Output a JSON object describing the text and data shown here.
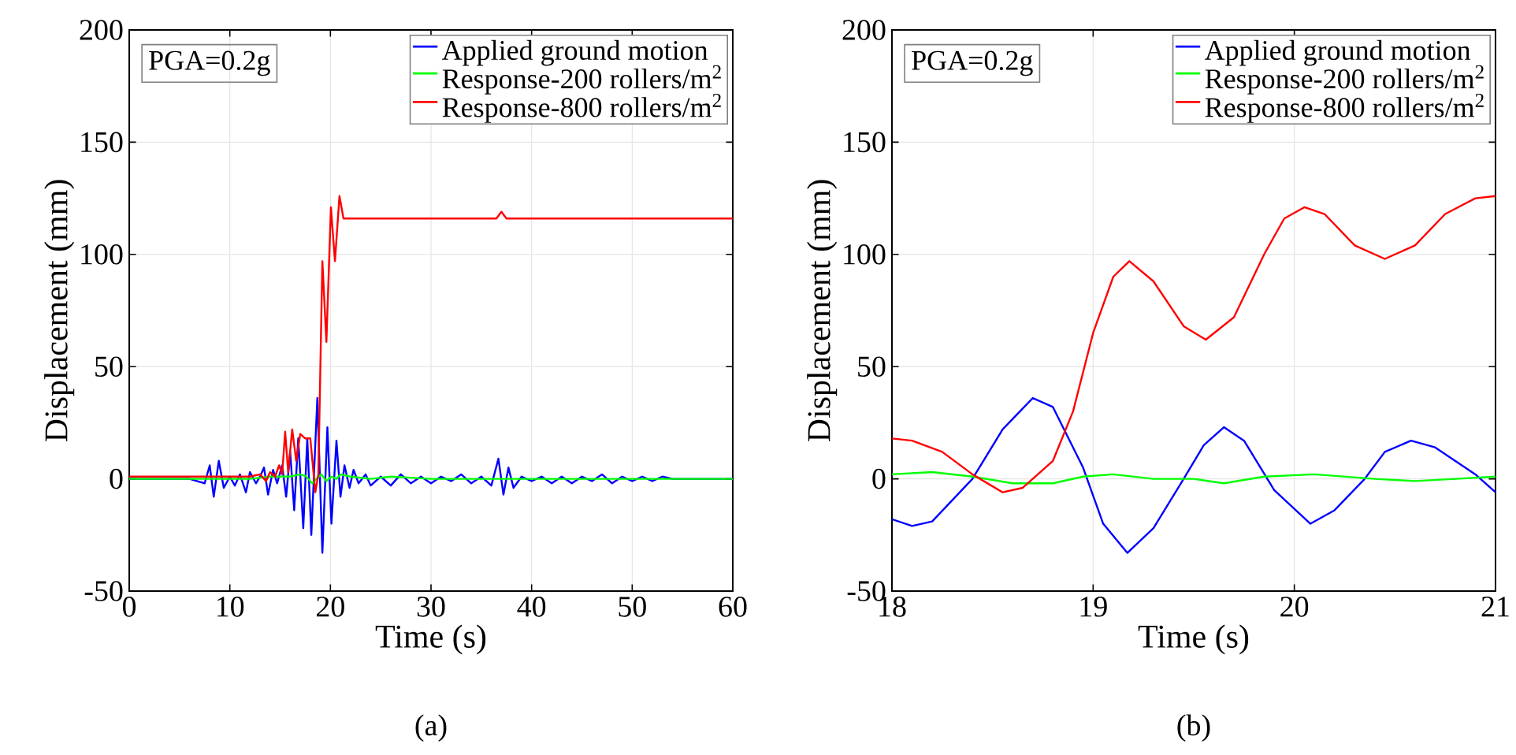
{
  "chart_data": [
    {
      "type": "line",
      "xlabel": "Time (s)",
      "ylabel": "Displacement (mm)",
      "xlim": [
        0,
        60
      ],
      "ylim": [
        -50,
        200
      ],
      "xticks": [
        0,
        10,
        20,
        30,
        40,
        50,
        60
      ],
      "yticks": [
        -50,
        0,
        50,
        100,
        150,
        200
      ],
      "grid": true,
      "legend": "top right",
      "annotations": [
        "PGA=0.2g",
        "(a)"
      ],
      "series": [
        {
          "name": "Applied ground motion",
          "color": "#0000ff",
          "x": [
            0,
            6,
            7.5,
            8,
            8.4,
            8.9,
            9.4,
            10,
            10.5,
            11,
            11.6,
            12,
            12.6,
            13,
            13.4,
            13.8,
            14.3,
            14.7,
            15.2,
            15.6,
            16,
            16.4,
            16.8,
            17.3,
            17.7,
            18.1,
            18.7,
            19.2,
            19.7,
            20.1,
            20.6,
            21,
            21.4,
            21.9,
            22.3,
            22.8,
            23.5,
            24,
            25,
            26,
            27,
            28,
            29,
            30,
            31,
            32,
            33,
            34,
            35,
            36,
            36.7,
            37.2,
            37.7,
            38.2,
            39,
            40,
            41,
            42,
            43,
            44,
            45,
            46,
            47,
            48,
            49,
            50,
            51,
            52,
            53,
            54,
            60
          ],
          "values": [
            0,
            0,
            -2,
            6,
            -8,
            8,
            -4,
            1,
            -3,
            2,
            -6,
            3,
            -2,
            1,
            5,
            -7,
            4,
            -2,
            6,
            -8,
            12,
            -14,
            18,
            -22,
            18,
            -25,
            36,
            -33,
            23,
            -20,
            17,
            -8,
            6,
            -4,
            4,
            -2,
            2,
            -3,
            1,
            -3,
            2,
            -2,
            1,
            -2,
            1,
            -1,
            2,
            -2,
            1,
            -3,
            9,
            -7,
            5,
            -4,
            1,
            -1,
            1,
            -2,
            1,
            -2,
            1,
            -1,
            2,
            -2,
            1,
            -1,
            1,
            -1,
            1,
            0,
            0
          ]
        },
        {
          "name": "Response-200 rollers/m$^{2}$",
          "color": "#00ff00",
          "x": [
            0,
            12,
            14,
            16,
            17,
            17.6,
            18.2,
            18.6,
            19.1,
            19.6,
            20.1,
            20.6,
            21,
            22,
            24,
            26,
            30,
            40,
            50,
            60
          ],
          "values": [
            0,
            0,
            1,
            1,
            2,
            1,
            -2,
            0,
            2,
            -1,
            1,
            0,
            2,
            1,
            0,
            1,
            0,
            0,
            0,
            0
          ]
        },
        {
          "name": "Response-800 rollers/m$^{2}$",
          "color": "#ff0000",
          "x": [
            0,
            12,
            13,
            13.6,
            14,
            14.5,
            14.9,
            15.2,
            15.5,
            15.8,
            16.2,
            16.6,
            17,
            17.5,
            18,
            18.5,
            18.8,
            19.2,
            19.6,
            20.05,
            20.45,
            20.9,
            21.3,
            30,
            36.5,
            37,
            37.5,
            60
          ],
          "values": [
            1,
            1,
            2,
            -1,
            3,
            1,
            6,
            2,
            21,
            3,
            22,
            8,
            20,
            18,
            18,
            -6,
            2,
            97,
            61,
            121,
            97,
            126,
            116,
            116,
            116,
            119,
            116,
            116
          ]
        }
      ]
    },
    {
      "type": "line",
      "xlabel": "Time (s)",
      "ylabel": "Displacement (mm)",
      "xlim": [
        18,
        21
      ],
      "ylim": [
        -50,
        200
      ],
      "xticks": [
        18,
        19,
        20,
        21
      ],
      "yticks": [
        -50,
        0,
        50,
        100,
        150,
        200
      ],
      "grid": true,
      "legend": "top right",
      "annotations": [
        "PGA=0.2g",
        "(b)"
      ],
      "series": [
        {
          "name": "Applied ground motion",
          "color": "#0000ff",
          "x": [
            18,
            18.1,
            18.2,
            18.4,
            18.55,
            18.7,
            18.8,
            18.95,
            19.05,
            19.17,
            19.3,
            19.45,
            19.55,
            19.65,
            19.75,
            19.9,
            20.08,
            20.2,
            20.35,
            20.45,
            20.58,
            20.7,
            20.9,
            21
          ],
          "values": [
            -18,
            -21,
            -19,
            0,
            22,
            36,
            32,
            5,
            -20,
            -33,
            -22,
            0,
            15,
            23,
            17,
            -5,
            -20,
            -14,
            0,
            12,
            17,
            14,
            2,
            -6
          ]
        },
        {
          "name": "Response-200 rollers/m$^{2}$",
          "color": "#00ff00",
          "x": [
            18,
            18.2,
            18.4,
            18.6,
            18.8,
            18.95,
            19.1,
            19.3,
            19.5,
            19.65,
            19.85,
            20.1,
            20.4,
            20.6,
            20.8,
            21
          ],
          "values": [
            2,
            3,
            1,
            -2,
            -2,
            1,
            2,
            0,
            0,
            -2,
            1,
            2,
            0,
            -1,
            0,
            1
          ]
        },
        {
          "name": "Response-800 rollers/m$^{2}$",
          "color": "#ff0000",
          "x": [
            18,
            18.1,
            18.25,
            18.4,
            18.55,
            18.65,
            18.8,
            18.9,
            19.0,
            19.1,
            19.18,
            19.3,
            19.45,
            19.56,
            19.7,
            19.85,
            19.95,
            20.05,
            20.15,
            20.3,
            20.45,
            20.6,
            20.75,
            20.9,
            21
          ],
          "values": [
            18,
            17,
            12,
            2,
            -6,
            -4,
            8,
            30,
            65,
            90,
            97,
            88,
            68,
            62,
            72,
            100,
            116,
            121,
            118,
            104,
            98,
            104,
            118,
            125,
            126
          ]
        }
      ]
    }
  ]
}
